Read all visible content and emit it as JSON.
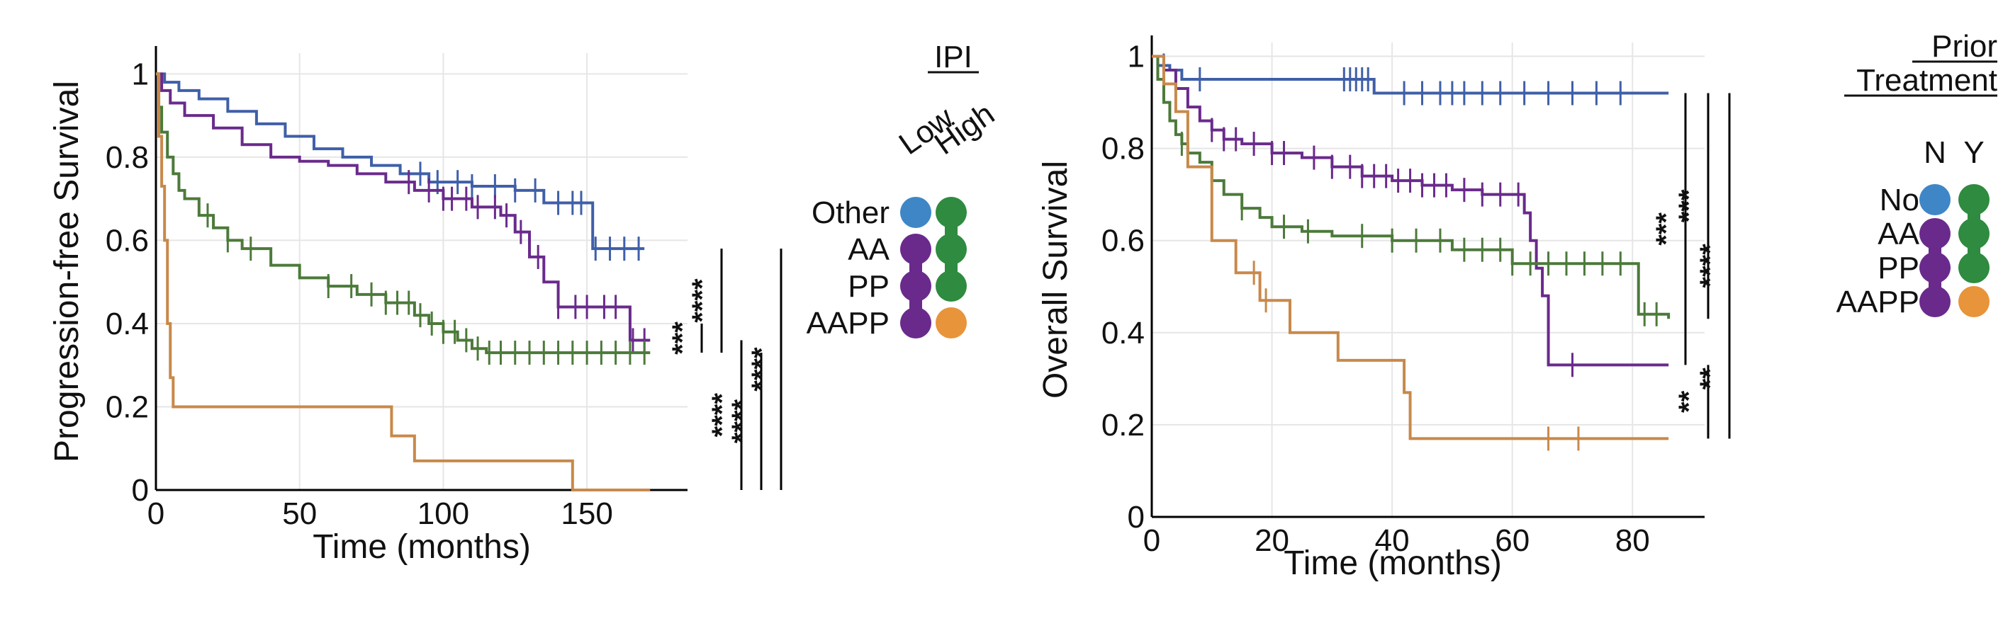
{
  "colors": {
    "blue": "#3f5fa8",
    "purple": "#6a2a8c",
    "green": "#4c7a3a",
    "orange": "#c8894a",
    "dot_blue": "#3f86c6",
    "dot_green": "#2e8b3f",
    "dot_purple": "#6a2a8c",
    "dot_orange": "#e8943a"
  },
  "chart_data": [
    {
      "type": "line",
      "subtype": "kaplan-meier",
      "xlabel": "Time (months)",
      "ylabel": "Progression-free Survival",
      "xlim": [
        0,
        185
      ],
      "ylim": [
        0,
        1.05
      ],
      "xticks": [
        0,
        50,
        100,
        150
      ],
      "yticks": [
        0,
        0.2,
        0.4,
        0.6,
        0.8,
        1
      ],
      "xtick_labels": [
        "0",
        "50",
        "100",
        "150"
      ],
      "ytick_labels": [
        "0",
        "0.2",
        "0.4",
        "0.6",
        "0.8",
        "1"
      ],
      "grid": true,
      "series": [
        {
          "color": "blue",
          "x": [
            0,
            3,
            8,
            15,
            25,
            35,
            45,
            55,
            65,
            75,
            85,
            95,
            110,
            125,
            135,
            150,
            152,
            170
          ],
          "y": [
            1,
            0.98,
            0.96,
            0.94,
            0.91,
            0.88,
            0.85,
            0.82,
            0.8,
            0.78,
            0.76,
            0.74,
            0.73,
            0.72,
            0.69,
            0.69,
            0.58,
            0.58
          ],
          "censor": [
            92,
            98,
            105,
            110,
            118,
            125,
            132,
            140,
            145,
            148,
            153,
            158,
            163,
            168
          ]
        },
        {
          "color": "purple",
          "x": [
            0,
            2,
            5,
            10,
            20,
            30,
            40,
            50,
            60,
            70,
            80,
            90,
            100,
            110,
            115,
            120,
            125,
            130,
            135,
            140,
            150,
            155,
            165,
            172
          ],
          "y": [
            1,
            0.96,
            0.93,
            0.9,
            0.87,
            0.83,
            0.8,
            0.79,
            0.78,
            0.76,
            0.74,
            0.72,
            0.7,
            0.68,
            0.68,
            0.66,
            0.62,
            0.56,
            0.5,
            0.44,
            0.44,
            0.44,
            0.36,
            0.36
          ],
          "censor": [
            88,
            95,
            100,
            103,
            108,
            112,
            118,
            122,
            127,
            133,
            140,
            146,
            150,
            156,
            160,
            166,
            170
          ]
        },
        {
          "color": "green",
          "x": [
            0,
            1,
            2,
            4,
            6,
            8,
            10,
            15,
            20,
            25,
            30,
            40,
            50,
            60,
            70,
            80,
            90,
            95,
            100,
            105,
            110,
            115,
            120,
            130,
            140,
            150,
            172
          ],
          "y": [
            1,
            0.92,
            0.86,
            0.8,
            0.76,
            0.72,
            0.7,
            0.66,
            0.63,
            0.6,
            0.58,
            0.54,
            0.51,
            0.49,
            0.47,
            0.45,
            0.42,
            0.4,
            0.38,
            0.36,
            0.34,
            0.33,
            0.33,
            0.33,
            0.33,
            0.33,
            0.33
          ],
          "censor": [
            18,
            25,
            33,
            60,
            68,
            75,
            80,
            84,
            88,
            92,
            96,
            100,
            104,
            108,
            112,
            116,
            120,
            125,
            130,
            135,
            140,
            145,
            150,
            155,
            160,
            165,
            170
          ]
        },
        {
          "color": "orange",
          "x": [
            0,
            1,
            2,
            3,
            4,
            5,
            6,
            8,
            82,
            90,
            145,
            172
          ],
          "y": [
            1,
            0.85,
            0.73,
            0.6,
            0.4,
            0.27,
            0.2,
            0.2,
            0.13,
            0.07,
            0,
            0
          ],
          "censor": []
        }
      ],
      "significance": [
        {
          "label": "***",
          "from": 0.33,
          "to": 0.4
        },
        {
          "label": "****",
          "from": 0.33,
          "to": 0.58
        },
        {
          "label": "****",
          "from": 0,
          "to": 0.36
        },
        {
          "label": "****",
          "from": 0,
          "to": 0.33
        },
        {
          "label": "****",
          "from": 0,
          "to": 0.58
        }
      ]
    },
    {
      "type": "line",
      "subtype": "kaplan-meier",
      "xlabel": "Time (months)",
      "ylabel": "Overall Survival",
      "xlim": [
        0,
        92
      ],
      "ylim": [
        0,
        1.03
      ],
      "xticks": [
        0,
        20,
        40,
        60,
        80
      ],
      "yticks": [
        0,
        0.2,
        0.4,
        0.6,
        0.8,
        1
      ],
      "xtick_labels": [
        "0",
        "20",
        "40",
        "60",
        "80"
      ],
      "ytick_labels": [
        "0",
        "0.2",
        "0.4",
        "0.6",
        "0.8",
        "1"
      ],
      "grid": true,
      "series": [
        {
          "color": "blue",
          "x": [
            0,
            1,
            3,
            5,
            36,
            37,
            86
          ],
          "y": [
            1,
            0.98,
            0.97,
            0.95,
            0.95,
            0.92,
            0.92
          ],
          "censor": [
            2,
            8,
            32,
            33,
            34,
            35,
            36,
            42,
            45,
            48,
            50,
            52,
            55,
            58,
            62,
            66,
            70,
            74,
            78
          ]
        },
        {
          "color": "purple",
          "x": [
            0,
            2,
            4,
            6,
            8,
            10,
            12,
            15,
            20,
            25,
            30,
            35,
            40,
            45,
            50,
            55,
            60,
            62,
            63,
            64,
            65,
            66,
            86
          ],
          "y": [
            1,
            0.97,
            0.93,
            0.89,
            0.86,
            0.84,
            0.82,
            0.81,
            0.79,
            0.78,
            0.76,
            0.74,
            0.73,
            0.72,
            0.71,
            0.7,
            0.7,
            0.66,
            0.6,
            0.54,
            0.48,
            0.33,
            0.33
          ],
          "censor": [
            10,
            12,
            14,
            17,
            20,
            22,
            27,
            30,
            33,
            35,
            37,
            39,
            41,
            43,
            45,
            47,
            49,
            52,
            55,
            58,
            61,
            70
          ]
        },
        {
          "color": "green",
          "x": [
            0,
            1,
            2,
            3,
            4,
            5,
            6,
            8,
            10,
            12,
            15,
            18,
            20,
            25,
            30,
            40,
            50,
            60,
            70,
            80,
            81,
            86
          ],
          "y": [
            1,
            0.95,
            0.9,
            0.86,
            0.83,
            0.81,
            0.79,
            0.77,
            0.73,
            0.7,
            0.67,
            0.65,
            0.63,
            0.62,
            0.61,
            0.6,
            0.58,
            0.55,
            0.55,
            0.55,
            0.44,
            0.43
          ],
          "censor": [
            5,
            10,
            15,
            22,
            26,
            35,
            40,
            44,
            48,
            52,
            55,
            58,
            60,
            63,
            66,
            69,
            72,
            75,
            78,
            82,
            84
          ]
        },
        {
          "color": "orange",
          "x": [
            0,
            2,
            4,
            6,
            10,
            14,
            18,
            23,
            31,
            42,
            43,
            86
          ],
          "y": [
            1,
            0.94,
            0.88,
            0.76,
            0.6,
            0.53,
            0.47,
            0.4,
            0.34,
            0.27,
            0.17,
            0.17
          ],
          "censor": [
            17,
            19,
            66,
            71
          ]
        }
      ],
      "significance": [
        {
          "label": "***",
          "from": 0.33,
          "to": 0.92
        },
        {
          "label": "***",
          "from": 0.43,
          "to": 0.92
        },
        {
          "label": "****",
          "from": 0.17,
          "to": 0.92
        },
        {
          "label": "**",
          "from": 0.17,
          "to": 0.33
        },
        {
          "label": "**",
          "from": 0.17,
          "to": 0.43
        }
      ]
    }
  ],
  "legends": [
    {
      "title_lines": [
        "IPI"
      ],
      "columns": [
        "Low",
        "High"
      ],
      "rows": [
        {
          "label": "Other",
          "dots": [
            "dot_blue",
            "dot_green"
          ]
        },
        {
          "label": "AA",
          "dots": [
            "dot_purple",
            "dot_green"
          ]
        },
        {
          "label": "PP",
          "dots": [
            "dot_purple",
            "dot_green"
          ]
        },
        {
          "label": "AAPP",
          "dots": [
            "dot_purple",
            "dot_orange"
          ]
        }
      ]
    },
    {
      "title_lines": [
        "Prior",
        "Treatment"
      ],
      "columns": [
        "N",
        "Y"
      ],
      "rows": [
        {
          "label": "No",
          "dots": [
            "dot_blue",
            "dot_green"
          ]
        },
        {
          "label": "AA",
          "dots": [
            "dot_purple",
            "dot_green"
          ]
        },
        {
          "label": "PP",
          "dots": [
            "dot_purple",
            "dot_green"
          ]
        },
        {
          "label": "AAPP",
          "dots": [
            "dot_purple",
            "dot_orange"
          ]
        }
      ]
    }
  ]
}
